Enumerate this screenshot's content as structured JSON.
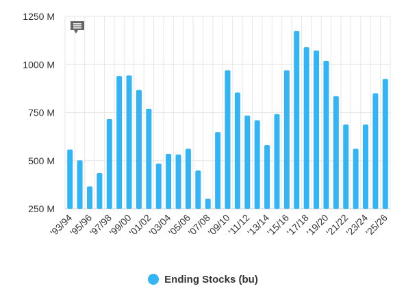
{
  "chart_data": {
    "type": "bar",
    "categories": [
      "'93/94",
      "'94/95",
      "'95/96",
      "'96/97",
      "'97/98",
      "'98/99",
      "'99/00",
      "'00/01",
      "'01/02",
      "'02/03",
      "'03/04",
      "'04/05",
      "'05/06",
      "'06/07",
      "'07/08",
      "'08/09",
      "'09/10",
      "'10/11",
      "'11/12",
      "'12/13",
      "'13/14",
      "'14/15",
      "'15/16",
      "'16/17",
      "'17/18",
      "'18/19",
      "'19/20",
      "'20/21",
      "'21/22",
      "'22/23",
      "'23/24",
      "'24/25",
      "'25/26"
    ],
    "x_tick_labels": [
      "'93/94",
      "'95/96",
      "'97/98",
      "'99/00",
      "'01/02",
      "'03/04",
      "'05/06",
      "'07/08",
      "'09/10",
      "'11/12",
      "'13/14",
      "'15/16",
      "'17/18",
      "'19/20",
      "'21/22",
      "'23/24",
      "'25/26"
    ],
    "series": [
      {
        "name": "Ending Stocks (bu)",
        "values": [
          558,
          502,
          366,
          435,
          716,
          940,
          943,
          868,
          770,
          485,
          535,
          532,
          562,
          449,
          302,
          648,
          970,
          854,
          735,
          710,
          581,
          742,
          970,
          1175,
          1090,
          1073,
          1019,
          836,
          688,
          562,
          688,
          850,
          925
        ]
      }
    ],
    "ylim": [
      250,
      1250
    ],
    "y_ticks": [
      250,
      500,
      750,
      1000,
      1250
    ],
    "y_tick_labels": [
      "250 M",
      "500 M",
      "750 M",
      "1000 M",
      "1250 M"
    ],
    "grid": true,
    "legend_position": "bottom",
    "colors": {
      "bar": "#33b5f5",
      "grid": "#e6e6e6",
      "axis": "#cccccc"
    },
    "icons": {
      "menu": "chat-bubble-icon"
    }
  }
}
